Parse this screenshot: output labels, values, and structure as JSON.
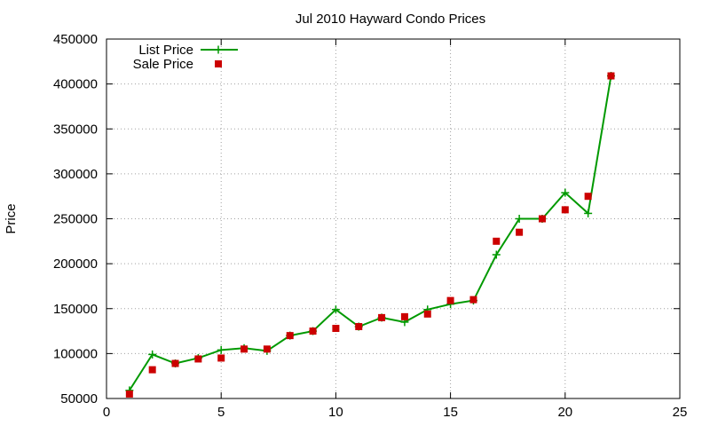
{
  "chart_data": {
    "type": "line",
    "title": "Jul 2010 Hayward Condo Prices",
    "xlabel": "",
    "ylabel": "Price",
    "xlim": [
      0,
      25
    ],
    "ylim": [
      50000,
      450000
    ],
    "xticks": [
      0,
      5,
      10,
      15,
      20,
      25
    ],
    "yticks": [
      50000,
      100000,
      150000,
      200000,
      250000,
      300000,
      350000,
      400000,
      450000
    ],
    "grid": true,
    "legend_position": "top-left",
    "series": [
      {
        "name": "List Price",
        "style": "line-points",
        "marker": "plus",
        "color": "#009900",
        "x": [
          1,
          2,
          3,
          4,
          5,
          6,
          7,
          8,
          9,
          10,
          11,
          12,
          13,
          14,
          15,
          16,
          17,
          18,
          19,
          20,
          21,
          22
        ],
        "y": [
          59000,
          99000,
          89000,
          95000,
          104000,
          106000,
          103000,
          120000,
          125000,
          149000,
          130000,
          140000,
          135000,
          149000,
          155000,
          159000,
          210000,
          250000,
          250000,
          279000,
          256000,
          409000
        ]
      },
      {
        "name": "Sale Price",
        "style": "points",
        "marker": "square",
        "color": "#cc0000",
        "x": [
          1,
          2,
          3,
          4,
          5,
          6,
          7,
          8,
          9,
          10,
          11,
          12,
          13,
          14,
          15,
          16,
          17,
          18,
          19,
          20,
          21,
          22
        ],
        "y": [
          55000,
          82000,
          89000,
          94000,
          95000,
          105000,
          105000,
          120000,
          125000,
          128000,
          130000,
          140000,
          141000,
          144000,
          159000,
          160000,
          225000,
          235000,
          250000,
          260000,
          275000,
          409000
        ]
      }
    ]
  }
}
